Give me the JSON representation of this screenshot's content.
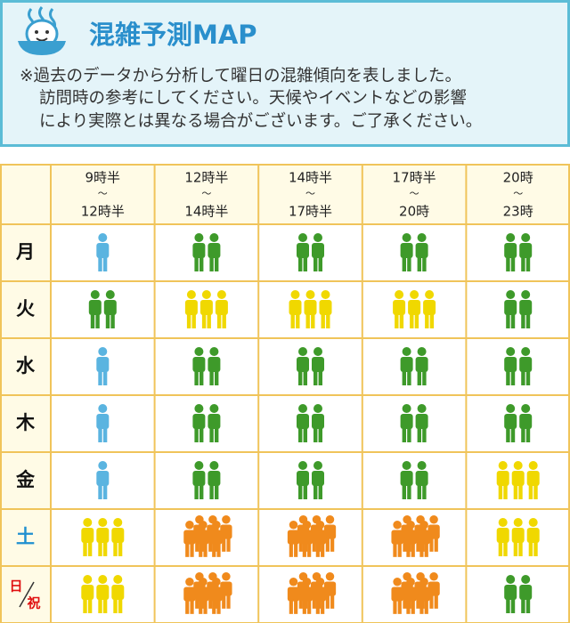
{
  "header": {
    "title": "混雑予測MAP",
    "notes": [
      "※過去のデータから分析して曜日の混雑傾向を表しました。",
      "訪問時の参考にしてください。天候やイベントなどの影響",
      "により実際とは異なる場合がございます。ご了承ください。"
    ]
  },
  "table": {
    "columns": [
      [
        "9時半",
        "〜",
        "12時半"
      ],
      [
        "12時半",
        "〜",
        "14時半"
      ],
      [
        "14時半",
        "〜",
        "17時半"
      ],
      [
        "17時半",
        "〜",
        "20時"
      ],
      [
        "20時",
        "〜",
        "23時"
      ]
    ],
    "rows": [
      {
        "day": "月",
        "color": "#111111",
        "cells": [
          1,
          2,
          2,
          2,
          2
        ]
      },
      {
        "day": "火",
        "color": "#111111",
        "cells": [
          2,
          3,
          3,
          3,
          2
        ]
      },
      {
        "day": "水",
        "color": "#111111",
        "cells": [
          1,
          2,
          2,
          2,
          2
        ]
      },
      {
        "day": "木",
        "color": "#111111",
        "cells": [
          1,
          2,
          2,
          2,
          2
        ]
      },
      {
        "day": "金",
        "color": "#111111",
        "cells": [
          1,
          2,
          2,
          2,
          3
        ]
      },
      {
        "day": "土",
        "color": "#1f8fd0",
        "cells": [
          3,
          6,
          6,
          6,
          3
        ]
      },
      {
        "day": "日",
        "day2": "祝",
        "color": "#e01010",
        "cells": [
          3,
          6,
          6,
          6,
          2
        ]
      }
    ],
    "level_colors": {
      "1": "#5ab4e0",
      "2": "#3e9a2a",
      "3": "#f0d800",
      "6": "#f08a1c"
    }
  }
}
